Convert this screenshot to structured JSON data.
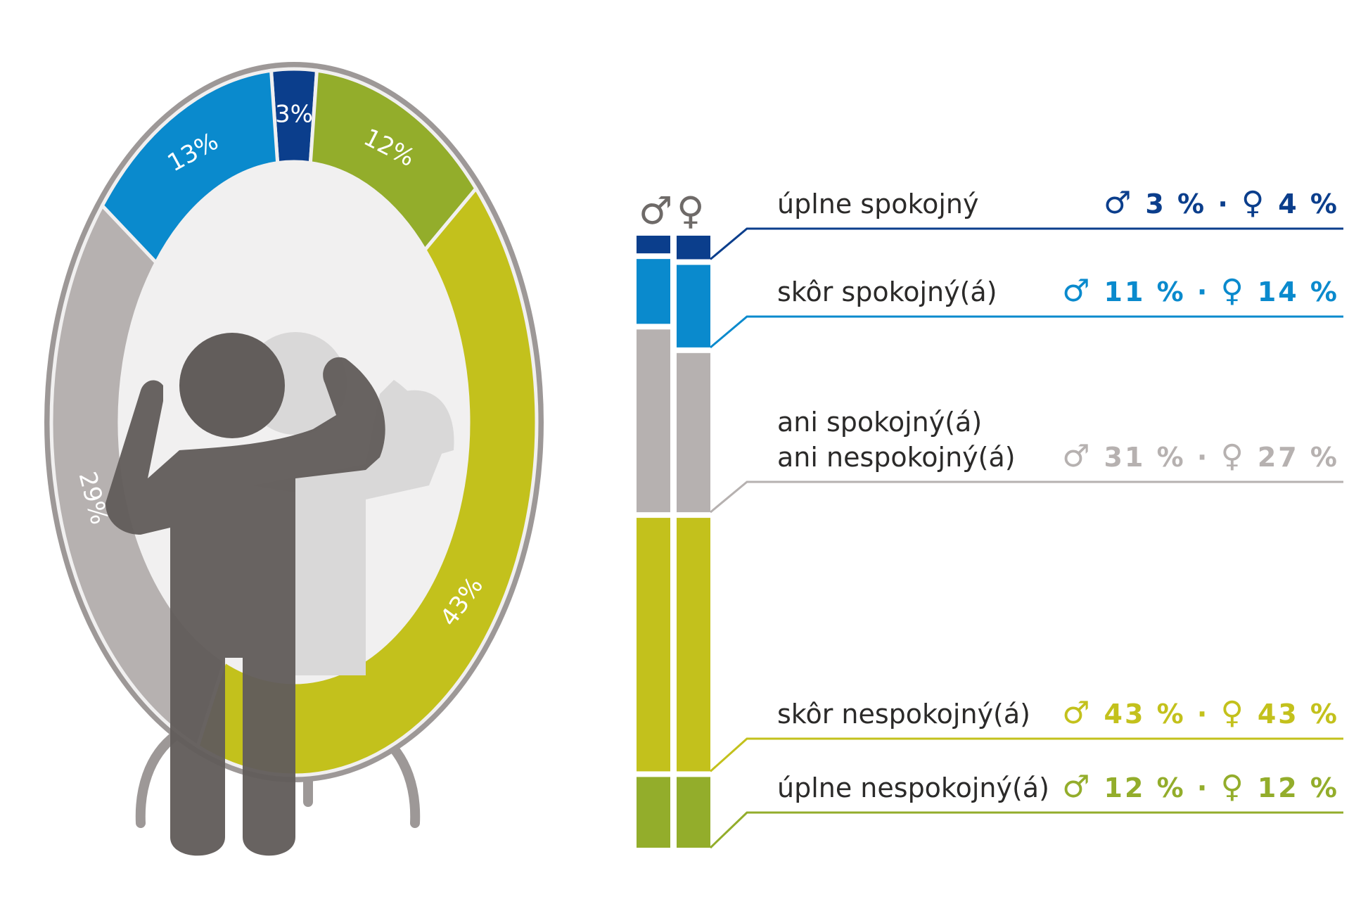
{
  "colors": {
    "complete_satisfied": "#0b3e8c",
    "rather_satisfied": "#0a8acd",
    "neutral": "#b6b1b0",
    "rather_dissatisfied": "#c3c11c",
    "complete_dissatisfied": "#93ad2b",
    "frame": "#9d9897",
    "mirror": "#f1f0f0",
    "figure": "#625d5b",
    "reflection": "#d9d8d8"
  },
  "legend": {
    "male_symbol": "♂",
    "female_symbol": "♀",
    "male_icon": "male-symbol-icon",
    "female_icon": "female-symbol-icon",
    "separator": "·"
  },
  "chart_data": [
    {
      "type": "pie",
      "variant": "donut",
      "title": "",
      "slices": [
        {
          "label": "3%",
          "value": 3,
          "color": "#0b3e8c"
        },
        {
          "label": "12%",
          "value": 12,
          "color": "#93ad2b"
        },
        {
          "label": "43%",
          "value": 43,
          "color": "#c3c11c"
        },
        {
          "label": "29%",
          "value": 29,
          "color": "#b6b1b0"
        },
        {
          "label": "13%",
          "value": 13,
          "color": "#0a8acd"
        }
      ]
    },
    {
      "type": "bar",
      "orientation": "vertical-stacked",
      "categories": [
        "♂",
        "♀"
      ],
      "series": [
        {
          "name": "úplne spokojný",
          "values": [
            3,
            4
          ],
          "value_labels": [
            "3 %",
            "4 %"
          ],
          "color": "#0b3e8c"
        },
        {
          "name": "skôr spokojný(á)",
          "values": [
            11,
            14
          ],
          "value_labels": [
            "11 %",
            "14 %"
          ],
          "color": "#0a8acd"
        },
        {
          "name": "ani spokojný(á) ani nespokojný(á)",
          "name_lines": [
            "ani spokojný(á)",
            "ani nespokojný(á)"
          ],
          "values": [
            31,
            27
          ],
          "value_labels": [
            "31 %",
            "27 %"
          ],
          "color": "#b6b1b0"
        },
        {
          "name": "skôr nespokojný(á)",
          "values": [
            43,
            43
          ],
          "value_labels": [
            "43 %",
            "43 %"
          ],
          "color": "#c3c11c"
        },
        {
          "name": "úplne nespokojný(á)",
          "values": [
            12,
            12
          ],
          "value_labels": [
            "12 %",
            "12 %"
          ],
          "color": "#93ad2b"
        }
      ]
    }
  ]
}
